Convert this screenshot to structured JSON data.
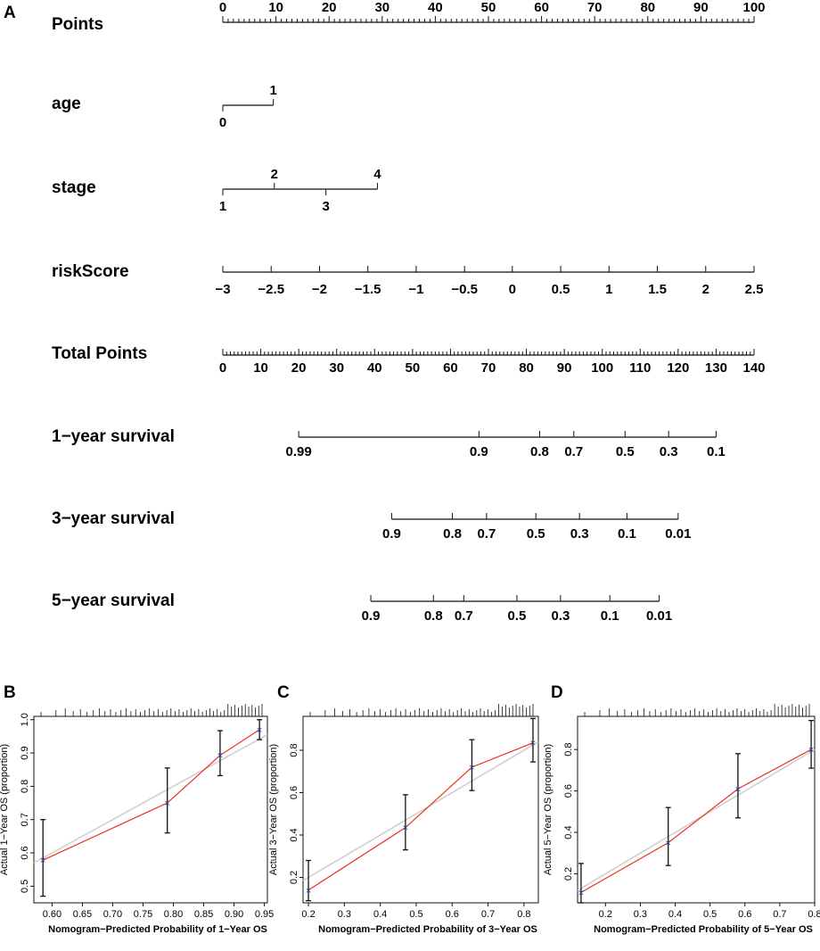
{
  "chart_data": [
    {
      "panel": "A",
      "type": "nomogram",
      "rows": [
        {
          "label": "Points",
          "ticks": [
            {
              "label": "0",
              "points": 0
            },
            {
              "label": "10",
              "points": 10
            },
            {
              "label": "20",
              "points": 20
            },
            {
              "label": "30",
              "points": 30
            },
            {
              "label": "40",
              "points": 40
            },
            {
              "label": "50",
              "points": 50
            },
            {
              "label": "60",
              "points": 60
            },
            {
              "label": "70",
              "points": 70
            },
            {
              "label": "80",
              "points": 80
            },
            {
              "label": "90",
              "points": 90
            },
            {
              "label": "100",
              "points": 100
            }
          ]
        },
        {
          "label": "age",
          "ticks": [
            {
              "label": "0",
              "points": 0,
              "side": "below"
            },
            {
              "label": "1",
              "points": 9.5,
              "side": "above"
            }
          ]
        },
        {
          "label": "stage",
          "ticks": [
            {
              "label": "1",
              "points": 0,
              "side": "below"
            },
            {
              "label": "2",
              "points": 9.7,
              "side": "above"
            },
            {
              "label": "3",
              "points": 19.4,
              "side": "below"
            },
            {
              "label": "4",
              "points": 29.1,
              "side": "above"
            }
          ]
        },
        {
          "label": "riskScore",
          "ticks": [
            {
              "label": "−3",
              "points": 0
            },
            {
              "label": "−2.5",
              "points": 9.1
            },
            {
              "label": "−2",
              "points": 18.2
            },
            {
              "label": "−1.5",
              "points": 27.3
            },
            {
              "label": "−1",
              "points": 36.4
            },
            {
              "label": "−0.5",
              "points": 45.5
            },
            {
              "label": "0",
              "points": 54.5
            },
            {
              "label": "0.5",
              "points": 63.6
            },
            {
              "label": "1",
              "points": 72.7
            },
            {
              "label": "1.5",
              "points": 81.8
            },
            {
              "label": "2",
              "points": 90.9
            },
            {
              "label": "2.5",
              "points": 100
            }
          ]
        },
        {
          "label": "Total Points",
          "ticks": [
            {
              "label": "0",
              "total": 0
            },
            {
              "label": "10",
              "total": 10
            },
            {
              "label": "20",
              "total": 20
            },
            {
              "label": "30",
              "total": 30
            },
            {
              "label": "40",
              "total": 40
            },
            {
              "label": "50",
              "total": 50
            },
            {
              "label": "60",
              "total": 60
            },
            {
              "label": "70",
              "total": 70
            },
            {
              "label": "80",
              "total": 80
            },
            {
              "label": "90",
              "total": 90
            },
            {
              "label": "100",
              "total": 100
            },
            {
              "label": "110",
              "total": 110
            },
            {
              "label": "120",
              "total": 120
            },
            {
              "label": "130",
              "total": 130
            },
            {
              "label": "140",
              "total": 140
            }
          ]
        },
        {
          "label": "1−year survival",
          "ticks": [
            {
              "label": "0.99",
              "total": 20
            },
            {
              "label": "0.9",
              "total": 67.5
            },
            {
              "label": "0.8",
              "total": 83.5
            },
            {
              "label": "0.7",
              "total": 92.5
            },
            {
              "label": "0.5",
              "total": 106
            },
            {
              "label": "0.3",
              "total": 117.5
            },
            {
              "label": "0.1",
              "total": 130
            }
          ]
        },
        {
          "label": "3−year survival",
          "ticks": [
            {
              "label": "0.9",
              "total": 44.5
            },
            {
              "label": "0.8",
              "total": 60.5
            },
            {
              "label": "0.7",
              "total": 69.5
            },
            {
              "label": "0.5",
              "total": 82.5
            },
            {
              "label": "0.3",
              "total": 94
            },
            {
              "label": "0.1",
              "total": 106.5
            },
            {
              "label": "0.01",
              "total": 120
            }
          ]
        },
        {
          "label": "5−year survival",
          "ticks": [
            {
              "label": "0.9",
              "total": 39
            },
            {
              "label": "0.8",
              "total": 55.5
            },
            {
              "label": "0.7",
              "total": 63.5
            },
            {
              "label": "0.5",
              "total": 77.5
            },
            {
              "label": "0.3",
              "total": 89
            },
            {
              "label": "0.1",
              "total": 102
            }
          ]
        },
        {
          "label": "",
          "ticks": [
            {
              "label": "0.01",
              "total": 115
            }
          ]
        }
      ],
      "total_points_range": [
        0,
        140
      ],
      "points_range": [
        0,
        100
      ]
    },
    {
      "panel": "B",
      "type": "calibration",
      "xlabel": "Nomogram−Predicted Probability of 1−Year OS",
      "ylabel": "Actual 1−Year OS (proportion)",
      "xlim": [
        0.57,
        0.955
      ],
      "ylim": [
        0.45,
        1.01
      ],
      "xticks": [
        "0.60",
        "0.65",
        "0.70",
        "0.75",
        "0.80",
        "0.85",
        "0.90",
        "0.95"
      ],
      "yticks": [
        "0.5",
        "0.6",
        "0.7",
        "0.8",
        "0.9",
        "1.0"
      ],
      "points": [
        {
          "x": 0.585,
          "y": 0.578,
          "lo": 0.47,
          "hi": 0.7
        },
        {
          "x": 0.79,
          "y": 0.75,
          "lo": 0.66,
          "hi": 0.855
        },
        {
          "x": 0.877,
          "y": 0.893,
          "lo": 0.832,
          "hi": 0.967
        },
        {
          "x": 0.942,
          "y": 0.97,
          "lo": 0.94,
          "hi": 1.0
        }
      ],
      "ideal_line": [
        [
          0.57,
          0.57
        ],
        [
          0.955,
          0.955
        ]
      ],
      "colors": {
        "observed": "#e8321e",
        "ideal": "#cfcfcf",
        "point": "#1f3fa8"
      }
    },
    {
      "panel": "C",
      "type": "calibration",
      "xlabel": "Nomogram−Predicted Probability of 3−Year OS",
      "ylabel": "Actual 3−Year OS (proportion)",
      "xlim": [
        0.185,
        0.84
      ],
      "ylim": [
        0.08,
        0.96
      ],
      "xticks": [
        "0.2",
        "0.3",
        "0.4",
        "0.5",
        "0.6",
        "0.7",
        "0.8"
      ],
      "yticks": [
        "0.2",
        "0.4",
        "0.6",
        "0.8"
      ],
      "points": [
        {
          "x": 0.2,
          "y": 0.14,
          "lo": 0.09,
          "hi": 0.28
        },
        {
          "x": 0.47,
          "y": 0.435,
          "lo": 0.33,
          "hi": 0.59
        },
        {
          "x": 0.655,
          "y": 0.72,
          "lo": 0.61,
          "hi": 0.85
        },
        {
          "x": 0.825,
          "y": 0.835,
          "lo": 0.745,
          "hi": 0.95
        }
      ],
      "ideal_line": [
        [
          0.185,
          0.185
        ],
        [
          0.84,
          0.84
        ]
      ],
      "colors": {
        "observed": "#e8321e",
        "ideal": "#cfcfcf",
        "point": "#1f3fa8"
      }
    },
    {
      "panel": "D",
      "type": "calibration",
      "xlabel": "Nomogram−Predicted Probability of 5−Year OS",
      "ylabel": "Actual 5−Year OS (proportion)",
      "xlim": [
        0.12,
        0.8
      ],
      "ylim": [
        0.06,
        0.96
      ],
      "xticks": [
        "0.2",
        "0.3",
        "0.4",
        "0.5",
        "0.6",
        "0.7",
        "0.8"
      ],
      "yticks": [
        "0.2",
        "0.4",
        "0.6",
        "0.8"
      ],
      "points": [
        {
          "x": 0.13,
          "y": 0.11,
          "lo": 0.06,
          "hi": 0.25
        },
        {
          "x": 0.38,
          "y": 0.35,
          "lo": 0.24,
          "hi": 0.52
        },
        {
          "x": 0.58,
          "y": 0.61,
          "lo": 0.47,
          "hi": 0.78
        },
        {
          "x": 0.79,
          "y": 0.8,
          "lo": 0.71,
          "hi": 0.94
        }
      ],
      "ideal_line": [
        [
          0.12,
          0.12
        ],
        [
          0.8,
          0.8
        ]
      ],
      "colors": {
        "observed": "#e8321e",
        "ideal": "#cfcfcf",
        "point": "#1f3fa8"
      }
    }
  ],
  "panel_letters": {
    "a": "A",
    "b": "B",
    "c": "C",
    "d": "D"
  }
}
